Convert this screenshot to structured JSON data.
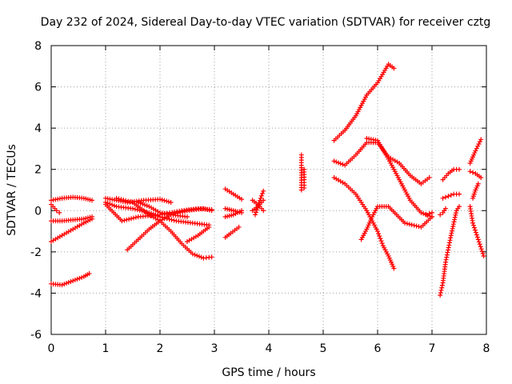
{
  "chart_data": {
    "type": "scatter",
    "title": "Day 232 of 2024, Sidereal Day-to-day VTEC variation (SDTVAR) for receiver cztg",
    "xlabel": "GPS time / hours",
    "ylabel": "SDTVAR / TECUs",
    "xlim": [
      0,
      8
    ],
    "ylim": [
      -6,
      8
    ],
    "xticks": [
      "0",
      "1",
      "2",
      "3",
      "4",
      "5",
      "6",
      "7",
      "8"
    ],
    "yticks": [
      "-6",
      "-4",
      "-2",
      "0",
      "2",
      "4",
      "6",
      "8"
    ],
    "grid": true,
    "marker": "+",
    "marker_color": "#ff0000",
    "tracks": [
      {
        "x": [
          0.0,
          0.2,
          0.4,
          0.6,
          0.75
        ],
        "y": [
          0.5,
          0.6,
          0.65,
          0.6,
          0.5
        ]
      },
      {
        "x": [
          0.0,
          0.2,
          0.4,
          0.6,
          0.75
        ],
        "y": [
          -0.5,
          -0.5,
          -0.45,
          -0.4,
          -0.3
        ]
      },
      {
        "x": [
          0.0,
          0.2,
          0.4,
          0.6,
          0.75
        ],
        "y": [
          -1.5,
          -1.2,
          -0.9,
          -0.6,
          -0.4
        ]
      },
      {
        "x": [
          0.0,
          0.1,
          0.15
        ],
        "y": [
          0.3,
          0.0,
          -0.1
        ]
      },
      {
        "x": [
          0.0,
          0.2,
          0.4,
          0.6,
          0.7
        ],
        "y": [
          -3.55,
          -3.6,
          -3.4,
          -3.2,
          -3.05
        ]
      },
      {
        "x": [
          1.0,
          1.2,
          1.4,
          1.7,
          2.0,
          2.2
        ],
        "y": [
          0.6,
          0.5,
          0.4,
          0.5,
          0.55,
          0.4
        ]
      },
      {
        "x": [
          1.0,
          1.2,
          1.5,
          1.8,
          2.0,
          2.3,
          2.6,
          2.9
        ],
        "y": [
          0.4,
          0.2,
          0.1,
          -0.1,
          -0.3,
          -0.5,
          -0.6,
          -0.7
        ]
      },
      {
        "x": [
          1.0,
          1.3,
          1.6,
          2.0,
          2.4,
          2.7,
          2.95
        ],
        "y": [
          0.3,
          -0.5,
          -0.3,
          -0.2,
          0.0,
          0.1,
          0.05
        ]
      },
      {
        "x": [
          1.4,
          1.6,
          1.8,
          2.0,
          2.2,
          2.5,
          2.8,
          2.95
        ],
        "y": [
          -1.9,
          -1.4,
          -0.9,
          -0.5,
          -0.2,
          0.0,
          0.1,
          0.0
        ]
      },
      {
        "x": [
          1.2,
          1.5,
          1.8,
          2.0,
          2.2,
          2.4,
          2.6,
          2.8,
          2.95
        ],
        "y": [
          0.6,
          0.4,
          -0.2,
          -0.5,
          -1.0,
          -1.6,
          -2.1,
          -2.3,
          -2.25
        ]
      },
      {
        "x": [
          1.6,
          1.8,
          2.0,
          2.2,
          2.5
        ],
        "y": [
          0.4,
          0.2,
          -0.1,
          -0.2,
          -0.3
        ]
      },
      {
        "x": [
          2.5,
          2.7,
          2.9
        ],
        "y": [
          -1.5,
          -1.2,
          -0.8
        ]
      },
      {
        "x": [
          3.2,
          3.35,
          3.5
        ],
        "y": [
          1.05,
          0.8,
          0.55
        ]
      },
      {
        "x": [
          3.2,
          3.35,
          3.5
        ],
        "y": [
          0.1,
          0.0,
          -0.1
        ]
      },
      {
        "x": [
          3.2,
          3.3,
          3.45
        ],
        "y": [
          -1.3,
          -1.1,
          -0.8
        ]
      },
      {
        "x": [
          3.2,
          3.35,
          3.5
        ],
        "y": [
          -0.3,
          -0.2,
          0.0
        ]
      },
      {
        "x": [
          3.7,
          3.8,
          3.9
        ],
        "y": [
          0.0,
          0.2,
          0.5
        ]
      },
      {
        "x": [
          3.7,
          3.8,
          3.9
        ],
        "y": [
          0.5,
          0.3,
          0.0
        ]
      },
      {
        "x": [
          3.75,
          3.85,
          3.9
        ],
        "y": [
          -0.2,
          0.6,
          0.95
        ]
      },
      {
        "x": [
          4.6,
          4.6,
          4.6,
          4.6
        ],
        "y": [
          2.7,
          2.2,
          1.6,
          1.0
        ]
      },
      {
        "x": [
          4.65,
          4.65,
          4.65
        ],
        "y": [
          2.0,
          1.5,
          1.1
        ]
      },
      {
        "x": [
          5.2,
          5.4,
          5.6,
          5.8,
          6.0,
          6.2,
          6.3
        ],
        "y": [
          3.4,
          3.9,
          4.6,
          5.6,
          6.2,
          7.1,
          6.9
        ]
      },
      {
        "x": [
          5.2,
          5.4,
          5.6,
          5.8,
          6.0,
          6.2,
          6.4,
          6.6,
          6.8,
          6.95
        ],
        "y": [
          2.4,
          2.2,
          2.7,
          3.3,
          3.3,
          2.6,
          2.3,
          1.7,
          1.3,
          1.6
        ]
      },
      {
        "x": [
          5.2,
          5.4,
          5.6,
          5.8,
          6.0,
          6.1,
          6.2,
          6.3
        ],
        "y": [
          1.6,
          1.3,
          0.8,
          0.0,
          -1.0,
          -1.7,
          -2.2,
          -2.8
        ]
      },
      {
        "x": [
          5.7,
          5.8,
          5.9,
          6.0,
          6.2,
          6.5,
          6.8,
          7.0
        ],
        "y": [
          -1.4,
          -0.9,
          -0.3,
          0.2,
          0.2,
          -0.6,
          -0.8,
          -0.3
        ]
      },
      {
        "x": [
          5.8,
          6.0,
          6.2,
          6.4,
          6.6,
          6.8,
          7.0
        ],
        "y": [
          3.5,
          3.4,
          2.5,
          1.5,
          0.5,
          -0.1,
          -0.3
        ]
      },
      {
        "x": [
          6.9,
          7.0
        ],
        "y": [
          -0.2,
          -0.1
        ]
      },
      {
        "x": [
          7.2,
          7.3,
          7.4,
          7.5
        ],
        "y": [
          1.5,
          1.8,
          2.0,
          2.0
        ]
      },
      {
        "x": [
          7.2,
          7.3,
          7.4,
          7.5
        ],
        "y": [
          0.6,
          0.7,
          0.8,
          0.8
        ]
      },
      {
        "x": [
          7.15,
          7.2,
          7.25,
          7.35,
          7.45,
          7.5
        ],
        "y": [
          -4.1,
          -3.5,
          -2.5,
          -1.2,
          0.0,
          0.2
        ]
      },
      {
        "x": [
          7.15,
          7.2,
          7.25
        ],
        "y": [
          -0.2,
          -0.1,
          0.1
        ]
      },
      {
        "x": [
          7.7,
          7.8,
          7.9
        ],
        "y": [
          2.3,
          2.9,
          3.45
        ]
      },
      {
        "x": [
          7.7,
          7.8,
          7.9
        ],
        "y": [
          1.9,
          1.8,
          1.6
        ]
      },
      {
        "x": [
          7.7,
          7.75,
          7.85,
          7.95
        ],
        "y": [
          0.2,
          -0.6,
          -1.4,
          -2.2
        ]
      },
      {
        "x": [
          7.75,
          7.8,
          7.85
        ],
        "y": [
          0.6,
          1.0,
          1.3
        ]
      }
    ]
  }
}
